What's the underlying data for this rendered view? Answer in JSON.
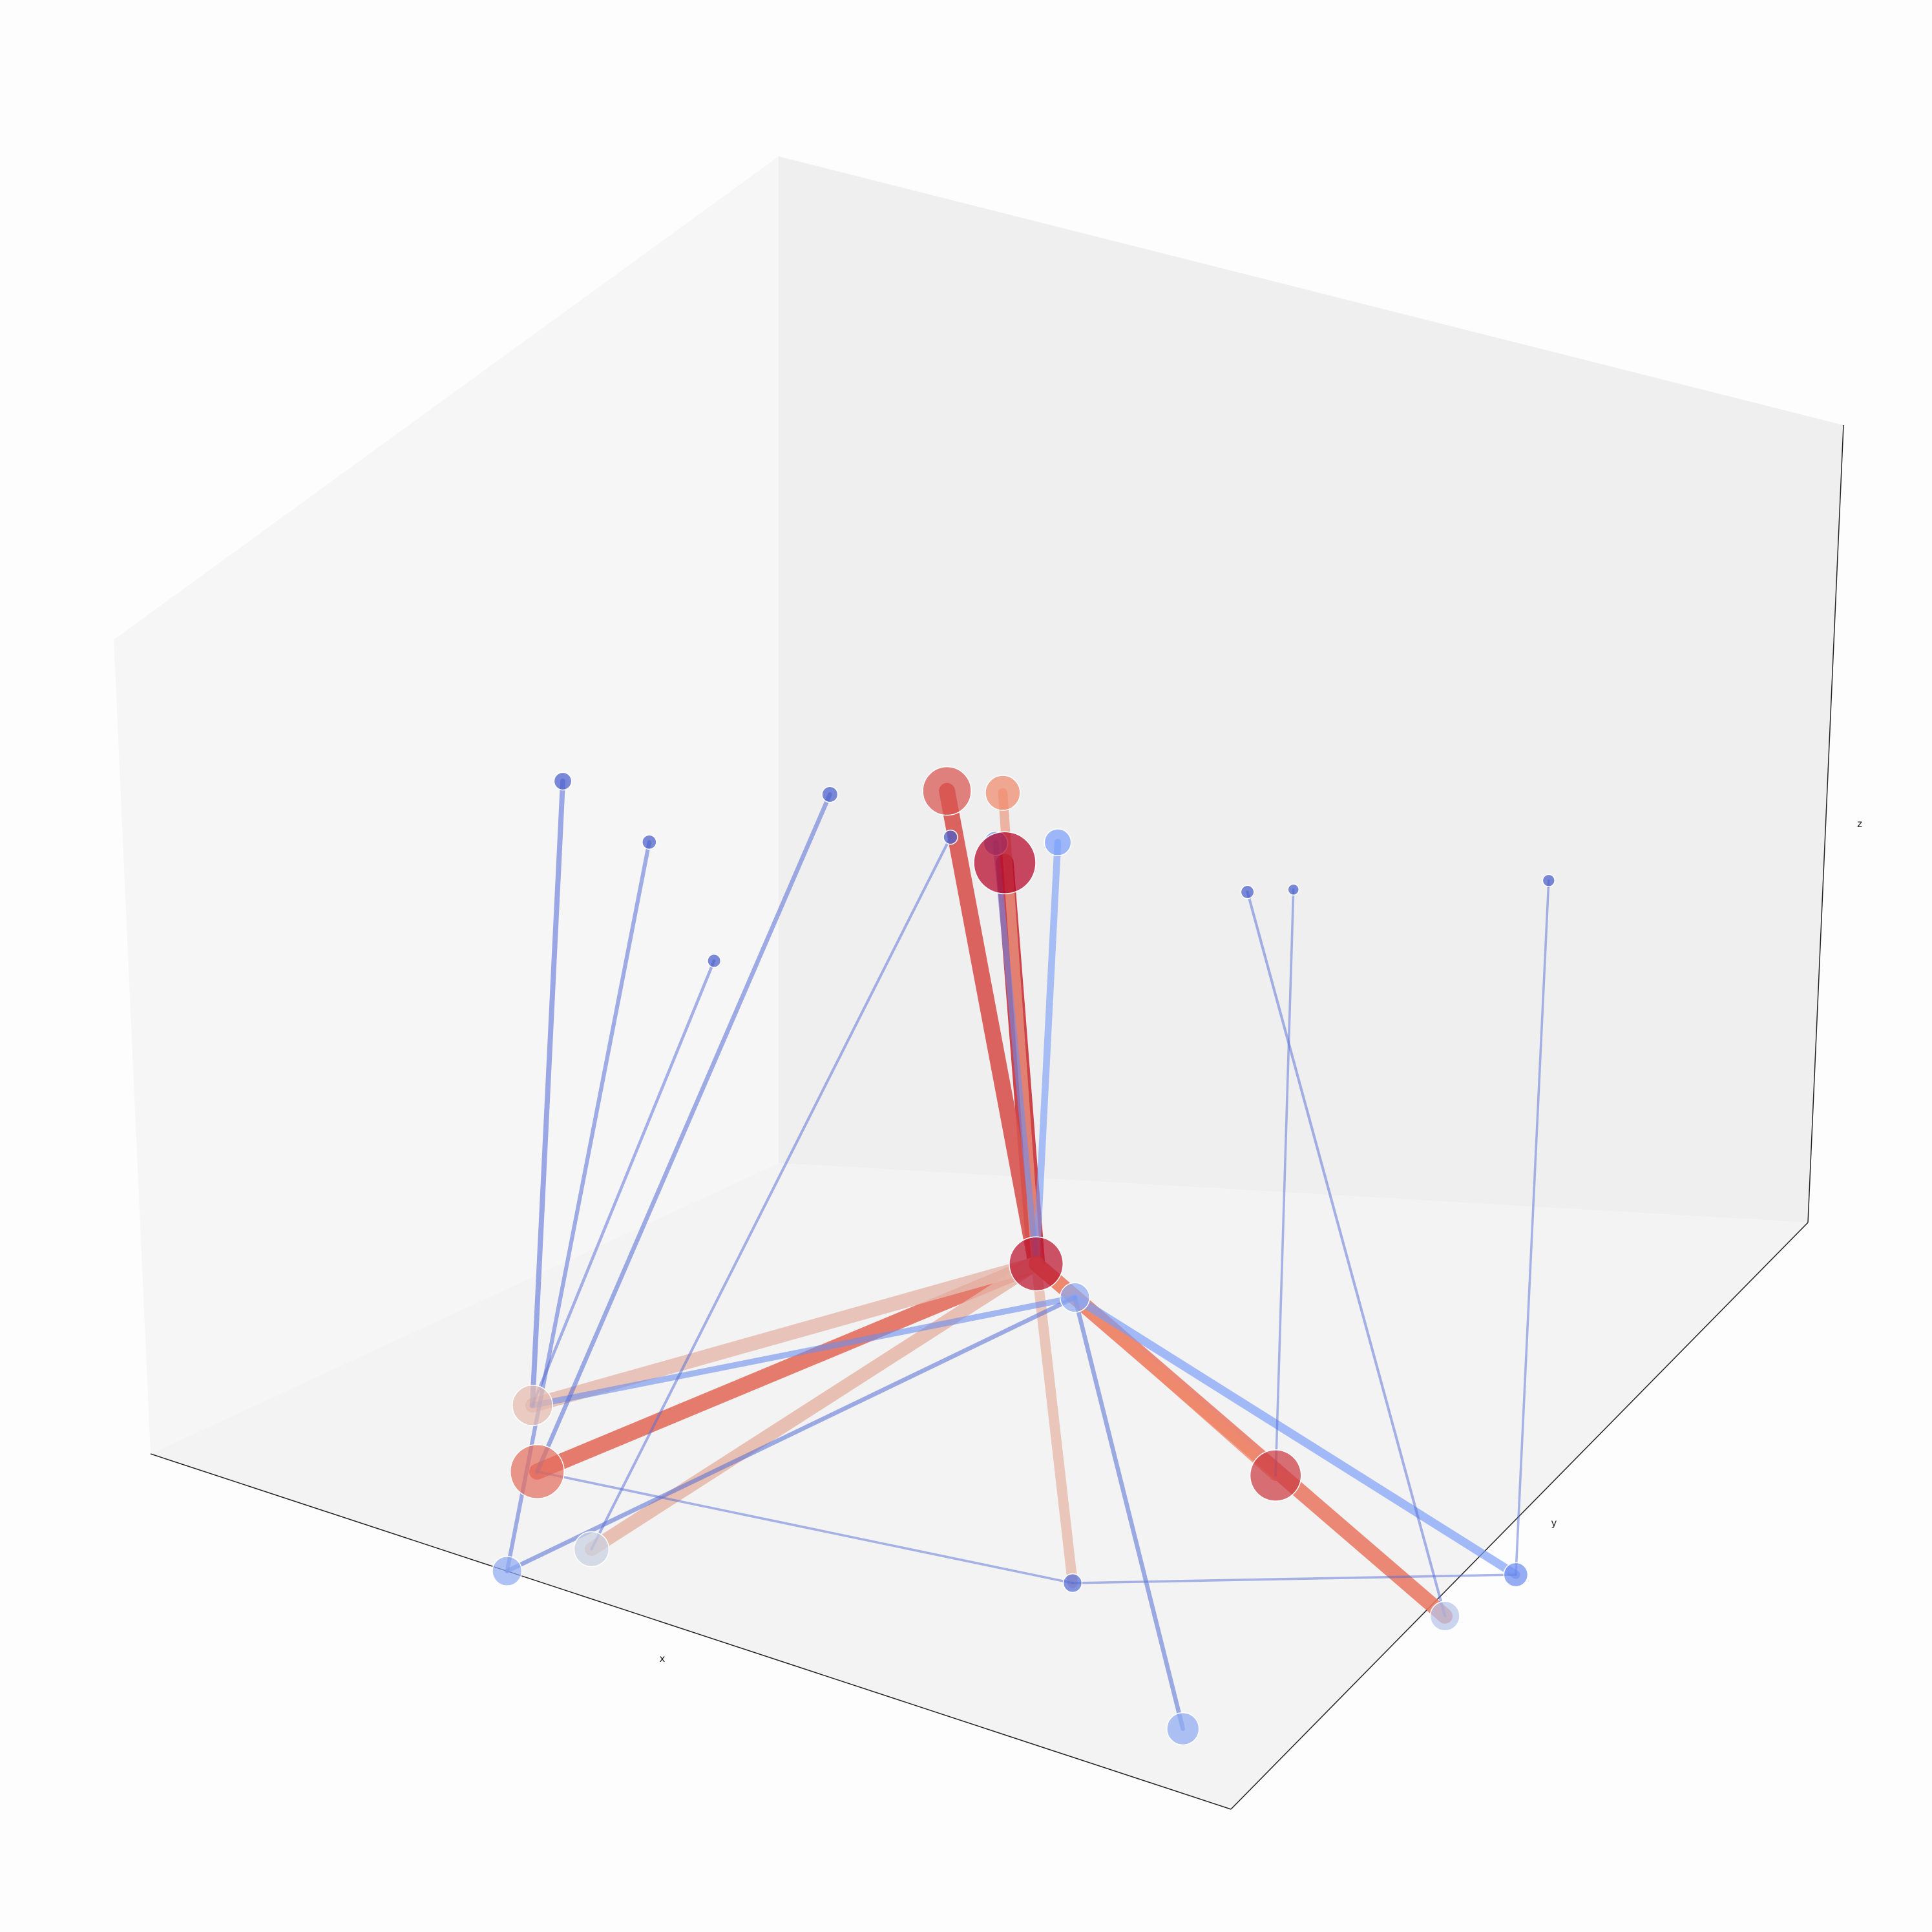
{
  "colors": {
    "background": "#fdfdfd",
    "pane_left": "#f6f6f6",
    "pane_back": "#efefef",
    "pane_floor": "#f3f3f3",
    "axis_line": "#222222",
    "colormap": "coolwarm",
    "blue_low": "#3b4cc0",
    "blue_mid": "#7b9ff9",
    "neutral": "#dddcdc",
    "red_mid": "#f08a6c",
    "red_high": "#b40426"
  },
  "chart_data": {
    "type": "scatter",
    "projection": "3d",
    "title": "",
    "axes": {
      "xlabel": "x",
      "ylabel": "y",
      "zlabel": "z"
    },
    "ticks_shown": false,
    "grid": false,
    "legend": "none",
    "xlim": [
      0,
      1
    ],
    "ylim": [
      0,
      1
    ],
    "zlim": [
      0,
      1
    ],
    "nodes": [
      {
        "id": "A",
        "x": 0.5,
        "y": 0.5,
        "z": 0.96,
        "size": 1.0,
        "color": 1.0
      },
      {
        "id": "B",
        "x": 0.4,
        "y": 0.58,
        "z": 0.98,
        "size": 0.75,
        "color": 0.85
      },
      {
        "id": "C",
        "x": 0.44,
        "y": 0.6,
        "z": 0.99,
        "size": 0.5,
        "color": 0.75
      },
      {
        "id": "D",
        "x": 0.52,
        "y": 0.55,
        "z": 0.98,
        "size": 0.35,
        "color": 0.25
      },
      {
        "id": "E",
        "x": 0.48,
        "y": 0.52,
        "z": 0.97,
        "size": 0.3,
        "color": 0.2
      },
      {
        "id": "F",
        "x": 0.5,
        "y": 0.55,
        "z": 0.32,
        "size": 0.85,
        "color": 0.97
      },
      {
        "id": "G",
        "x": 0.53,
        "y": 0.56,
        "z": 0.28,
        "size": 0.4,
        "color": 0.3
      },
      {
        "id": "H",
        "x": 0.71,
        "y": 0.57,
        "z": 0.1,
        "size": 0.8,
        "color": 0.9
      },
      {
        "id": "I",
        "x": 0.88,
        "y": 0.66,
        "z": 0.0,
        "size": 0.3,
        "color": 0.2
      },
      {
        "id": "J",
        "x": 0.89,
        "y": 0.53,
        "z": 0.0,
        "size": 0.4,
        "color": 0.4
      },
      {
        "id": "K",
        "x": 0.65,
        "y": 0.35,
        "z": 0.0,
        "size": 0.2,
        "color": 0.1
      },
      {
        "id": "L",
        "x": 0.15,
        "y": 0.35,
        "z": 0.0,
        "size": 0.6,
        "color": 0.6
      },
      {
        "id": "M",
        "x": 0.23,
        "y": 0.22,
        "z": 0.0,
        "size": 0.85,
        "color": 0.8
      },
      {
        "id": "N",
        "x": 0.35,
        "y": 0.1,
        "z": 0.0,
        "size": 0.5,
        "color": 0.45
      },
      {
        "id": "O",
        "x": 0.33,
        "y": 0.0,
        "z": 0.0,
        "size": 0.4,
        "color": 0.3
      },
      {
        "id": "P",
        "x": 0.88,
        "y": 0.13,
        "z": 0.0,
        "size": 0.45,
        "color": 0.3
      },
      {
        "id": "Q",
        "x": 0.12,
        "y": 0.45,
        "z": 0.9,
        "size": 0.18,
        "color": 0.05
      },
      {
        "id": "R",
        "x": 0.28,
        "y": 0.6,
        "z": 0.9,
        "size": 0.15,
        "color": 0.05
      },
      {
        "id": "S",
        "x": 0.2,
        "y": 0.45,
        "z": 0.85,
        "size": 0.12,
        "color": 0.05
      },
      {
        "id": "T",
        "x": 0.26,
        "y": 0.45,
        "z": 0.7,
        "size": 0.1,
        "color": 0.05
      },
      {
        "id": "U",
        "x": 0.38,
        "y": 0.62,
        "z": 0.88,
        "size": 0.12,
        "color": 0.05
      },
      {
        "id": "V",
        "x": 0.62,
        "y": 0.68,
        "z": 0.9,
        "size": 0.1,
        "color": 0.05
      },
      {
        "id": "W",
        "x": 0.8,
        "y": 0.85,
        "z": 0.94,
        "size": 0.08,
        "color": 0.05
      },
      {
        "id": "X",
        "x": 0.68,
        "y": 0.65,
        "z": 0.95,
        "size": 0.06,
        "color": 0.05
      }
    ],
    "edges": [
      {
        "from": "A",
        "to": "F",
        "weight": 1.0,
        "color": 0.9
      },
      {
        "from": "B",
        "to": "F",
        "weight": 0.9,
        "color": 0.85
      },
      {
        "from": "C",
        "to": "F",
        "weight": 0.5,
        "color": 0.7
      },
      {
        "from": "D",
        "to": "F",
        "weight": 0.35,
        "color": 0.25
      },
      {
        "from": "E",
        "to": "F",
        "weight": 0.3,
        "color": 0.2
      },
      {
        "from": "F",
        "to": "M",
        "weight": 0.9,
        "color": 0.8
      },
      {
        "from": "F",
        "to": "L",
        "weight": 0.8,
        "color": 0.6
      },
      {
        "from": "F",
        "to": "N",
        "weight": 0.75,
        "color": 0.62
      },
      {
        "from": "F",
        "to": "K",
        "weight": 0.55,
        "color": 0.62
      },
      {
        "from": "F",
        "to": "J",
        "weight": 0.85,
        "color": 0.78
      },
      {
        "from": "F",
        "to": "H",
        "weight": 0.6,
        "color": 0.75
      },
      {
        "from": "G",
        "to": "I",
        "weight": 0.45,
        "color": 0.25
      },
      {
        "from": "G",
        "to": "L",
        "weight": 0.3,
        "color": 0.2
      },
      {
        "from": "G",
        "to": "O",
        "weight": 0.2,
        "color": 0.1
      },
      {
        "from": "G",
        "to": "P",
        "weight": 0.2,
        "color": 0.1
      },
      {
        "from": "Q",
        "to": "L",
        "weight": 0.25,
        "color": 0.1
      },
      {
        "from": "R",
        "to": "M",
        "weight": 0.2,
        "color": 0.1
      },
      {
        "from": "S",
        "to": "O",
        "weight": 0.18,
        "color": 0.1
      },
      {
        "from": "T",
        "to": "L",
        "weight": 0.12,
        "color": 0.1
      },
      {
        "from": "U",
        "to": "N",
        "weight": 0.1,
        "color": 0.1
      },
      {
        "from": "V",
        "to": "J",
        "weight": 0.1,
        "color": 0.1
      },
      {
        "from": "W",
        "to": "I",
        "weight": 0.08,
        "color": 0.1
      },
      {
        "from": "X",
        "to": "H",
        "weight": 0.08,
        "color": 0.1
      },
      {
        "from": "K",
        "to": "M",
        "weight": 0.08,
        "color": 0.1
      },
      {
        "from": "K",
        "to": "I",
        "weight": 0.08,
        "color": 0.1
      }
    ]
  }
}
